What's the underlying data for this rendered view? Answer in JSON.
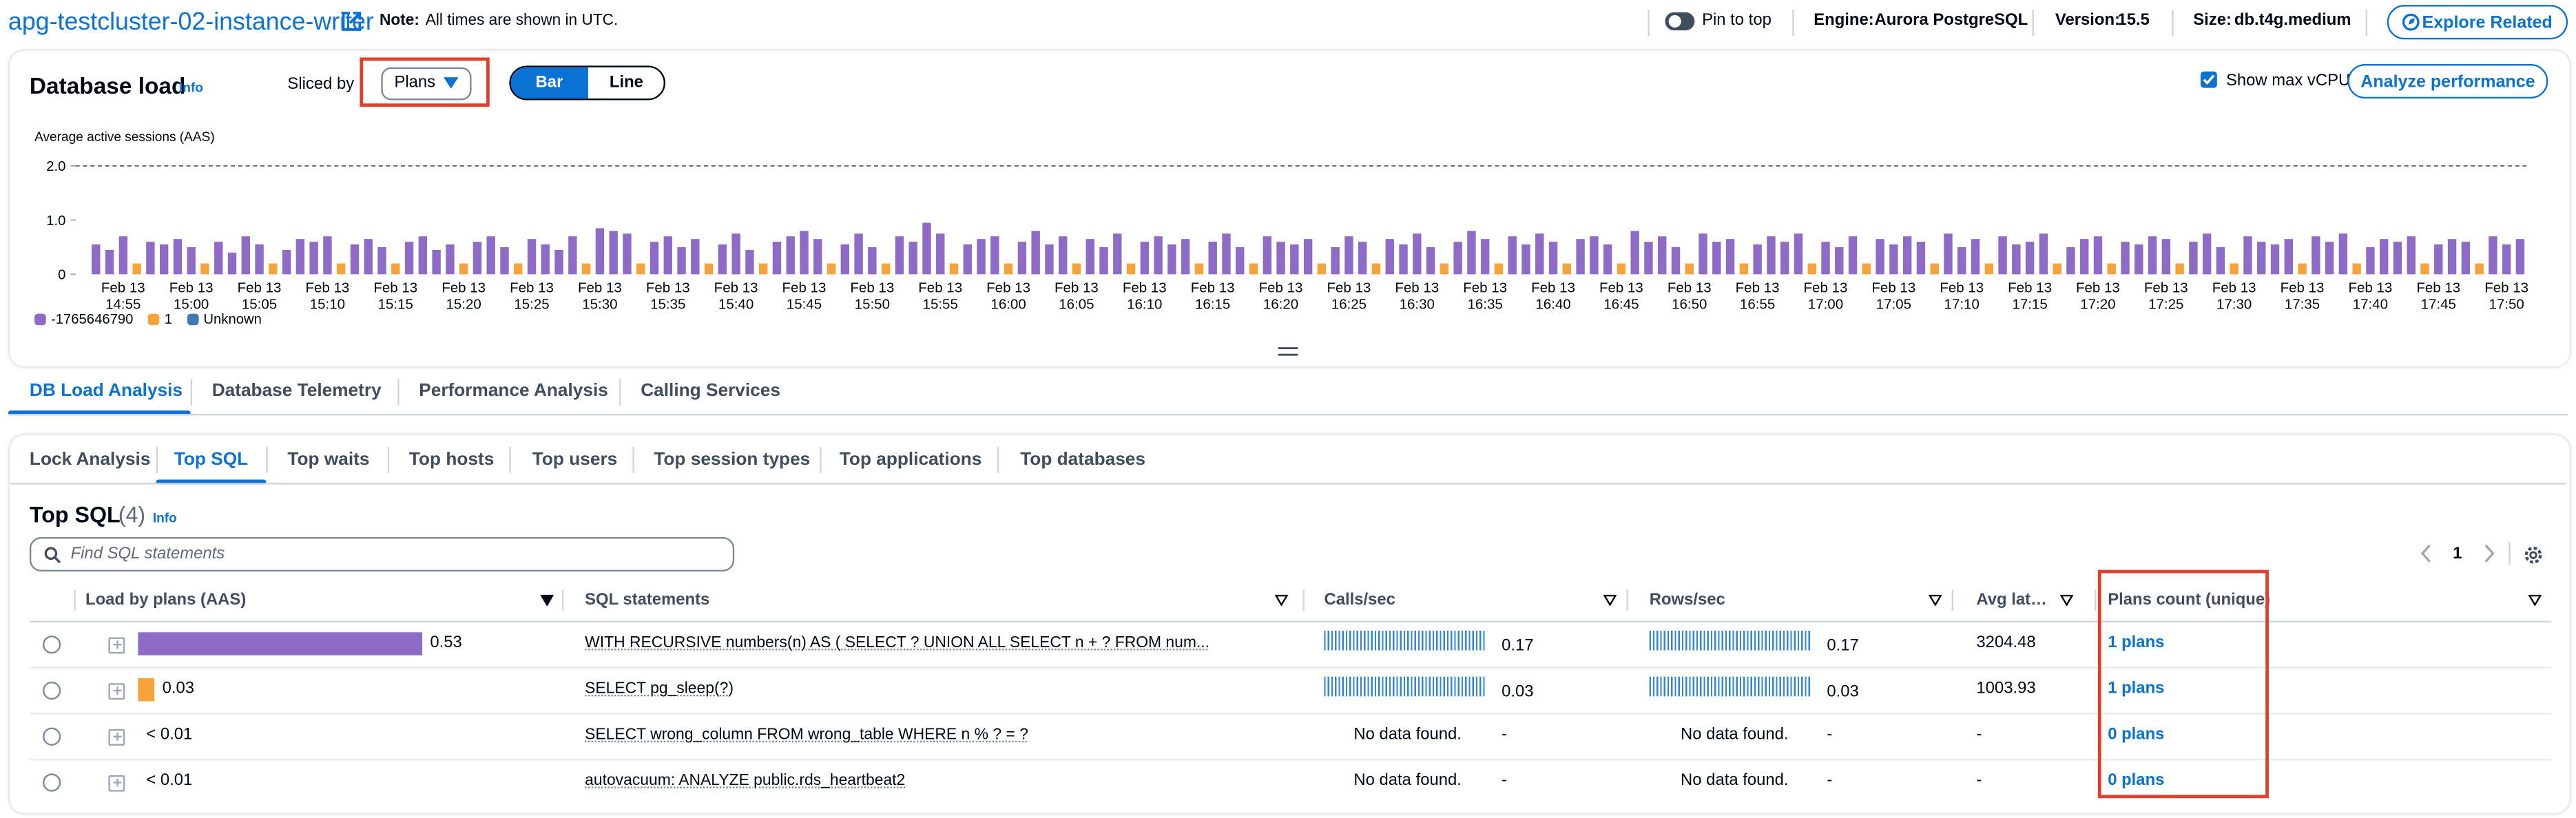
{
  "header": {
    "title": "apg-testcluster-02-instance-writer",
    "note_label": "Note:",
    "note": "All times are shown in UTC.",
    "pin": "Pin to top",
    "engine_label": "Engine:",
    "engine": "Aurora PostgreSQL",
    "version_label": "Version:",
    "version": "15.5",
    "size_label": "Size:",
    "size": "db.t4g.medium",
    "explore": "Explore Related"
  },
  "load_panel": {
    "title": "Database load",
    "info": "Info",
    "sliced_by_label": "Sliced by",
    "sliced_by": "Plans",
    "toggle": [
      "Bar",
      "Line"
    ],
    "show_max_vcpu": "Show max vCPU",
    "analyze": "Analyze performance"
  },
  "chart_data": {
    "type": "bar",
    "stacked": true,
    "y_label": "Average active sessions (AAS)",
    "ylim": [
      0,
      2
    ],
    "yticks": [
      0,
      {
        "value": 1,
        "label": "1.0"
      },
      {
        "value": 2,
        "label": "2.0"
      }
    ],
    "max_vcpu": 2,
    "categories": [
      null,
      null,
      "Feb 13 14:55",
      null,
      null,
      null,
      null,
      "Feb 13 15:00",
      null,
      null,
      null,
      null,
      "Feb 13 15:05",
      null,
      null,
      null,
      null,
      "Feb 13 15:10",
      null,
      null,
      null,
      null,
      "Feb 13 15:15",
      null,
      null,
      null,
      null,
      "Feb 13 15:20",
      null,
      null,
      null,
      null,
      "Feb 13 15:25",
      null,
      null,
      null,
      null,
      "Feb 13 15:30",
      null,
      null,
      null,
      null,
      "Feb 13 15:35",
      null,
      null,
      null,
      null,
      "Feb 13 15:40",
      null,
      null,
      null,
      null,
      "Feb 13 15:45",
      null,
      null,
      null,
      null,
      "Feb 13 15:50",
      null,
      null,
      null,
      null,
      "Feb 13 15:55",
      null,
      null,
      null,
      null,
      "Feb 13 16:00",
      null,
      null,
      null,
      null,
      "Feb 13 16:05",
      null,
      null,
      null,
      null,
      "Feb 13 16:10",
      null,
      null,
      null,
      null,
      "Feb 13 16:15",
      null,
      null,
      null,
      null,
      "Feb 13 16:20",
      null,
      null,
      null,
      null,
      "Feb 13 16:25",
      null,
      null,
      null,
      null,
      "Feb 13 16:30",
      null,
      null,
      null,
      null,
      "Feb 13 16:35",
      null,
      null,
      null,
      null,
      "Feb 13 16:40",
      null,
      null,
      null,
      null,
      "Feb 13 16:45",
      null,
      null,
      null,
      null,
      "Feb 13 16:50",
      null,
      null,
      null,
      null,
      "Feb 13 16:55",
      null,
      null,
      null,
      null,
      "Feb 13 17:00",
      null,
      null,
      null,
      null,
      "Feb 13 17:05",
      null,
      null,
      null,
      null,
      "Feb 13 17:10",
      null,
      null,
      null,
      null,
      "Feb 13 17:15",
      null,
      null,
      null,
      null,
      "Feb 13 17:20",
      null,
      null,
      null,
      null,
      "Feb 13 17:25",
      null,
      null,
      null,
      null,
      "Feb 13 17:30",
      null,
      null,
      null,
      null,
      "Feb 13 17:35",
      null,
      null,
      null,
      null,
      "Feb 13 17:40",
      null,
      null,
      null,
      null,
      "Feb 13 17:45",
      null,
      null,
      null,
      null,
      "Feb 13 17:50",
      null
    ],
    "series": [
      {
        "name": "-1765646790",
        "color": "#8d6bc7",
        "values": [
          0.55,
          0.45,
          0.7,
          0,
          0.6,
          0.55,
          0.65,
          0.5,
          0,
          0.6,
          0.4,
          0.7,
          0.55,
          0,
          0.45,
          0.65,
          0.6,
          0.7,
          0,
          0.55,
          0.65,
          0.5,
          0,
          0.6,
          0.7,
          0.45,
          0.55,
          0,
          0.6,
          0.7,
          0.5,
          0,
          0.65,
          0.55,
          0.45,
          0.7,
          0,
          0.85,
          0.8,
          0.75,
          0,
          0.6,
          0.7,
          0.5,
          0.65,
          0,
          0.55,
          0.75,
          0.45,
          0,
          0.6,
          0.7,
          0.8,
          0.65,
          0,
          0.55,
          0.75,
          0.5,
          0,
          0.7,
          0.6,
          0.95,
          0.75,
          0,
          0.55,
          0.65,
          0.7,
          0,
          0.6,
          0.8,
          0.55,
          0.7,
          0,
          0.65,
          0.5,
          0.75,
          0,
          0.6,
          0.7,
          0.55,
          0.65,
          0,
          0.6,
          0.75,
          0.5,
          0,
          0.7,
          0.6,
          0.55,
          0.65,
          0,
          0.5,
          0.7,
          0.6,
          0,
          0.65,
          0.55,
          0.75,
          0.5,
          0,
          0.6,
          0.8,
          0.65,
          0,
          0.7,
          0.55,
          0.75,
          0.6,
          0,
          0.65,
          0.7,
          0.55,
          0,
          0.8,
          0.6,
          0.7,
          0.5,
          0,
          0.75,
          0.6,
          0.65,
          0,
          0.55,
          0.7,
          0.6,
          0.75,
          0,
          0.6,
          0.5,
          0.7,
          0,
          0.65,
          0.55,
          0.7,
          0.6,
          0,
          0.75,
          0.5,
          0.65,
          0,
          0.7,
          0.55,
          0.6,
          0.75,
          0,
          0.5,
          0.65,
          0.7,
          0,
          0.6,
          0.55,
          0.7,
          0.65,
          0,
          0.6,
          0.75,
          0.5,
          0,
          0.7,
          0.6,
          0.55,
          0.65,
          0,
          0.7,
          0.6,
          0.75,
          0,
          0.5,
          0.65,
          0.6,
          0.7,
          0,
          0.55,
          0.65,
          0.6,
          0,
          0.7,
          0.55,
          0.65
        ]
      },
      {
        "name": "1",
        "color": "#f5a33a",
        "values": [
          0,
          0,
          0,
          0.2,
          0,
          0,
          0,
          0,
          0.2,
          0,
          0,
          0,
          0,
          0.2,
          0,
          0,
          0,
          0,
          0.2,
          0,
          0,
          0,
          0.2,
          0,
          0,
          0,
          0,
          0.2,
          0,
          0,
          0,
          0.2,
          0,
          0,
          0,
          0,
          0.2,
          0,
          0,
          0,
          0.2,
          0,
          0,
          0,
          0,
          0.2,
          0,
          0,
          0,
          0.2,
          0,
          0,
          0,
          0,
          0.2,
          0,
          0,
          0,
          0.2,
          0,
          0,
          0,
          0,
          0.2,
          0,
          0,
          0,
          0.2,
          0,
          0,
          0,
          0,
          0.2,
          0,
          0,
          0,
          0.2,
          0,
          0,
          0,
          0,
          0.2,
          0,
          0,
          0,
          0.2,
          0,
          0,
          0,
          0,
          0.2,
          0,
          0,
          0,
          0.2,
          0,
          0,
          0,
          0,
          0.2,
          0,
          0,
          0,
          0.2,
          0,
          0,
          0,
          0,
          0.2,
          0,
          0,
          0,
          0.2,
          0,
          0,
          0,
          0,
          0.2,
          0,
          0,
          0,
          0.2,
          0,
          0,
          0,
          0,
          0.2,
          0,
          0,
          0,
          0.2,
          0,
          0,
          0,
          0,
          0.2,
          0,
          0,
          0,
          0.2,
          0,
          0,
          0,
          0,
          0.2,
          0,
          0,
          0,
          0.2,
          0,
          0,
          0,
          0,
          0.2,
          0,
          0,
          0,
          0.2,
          0,
          0,
          0,
          0,
          0.2,
          0,
          0,
          0,
          0.2,
          0,
          0,
          0,
          0,
          0.2,
          0,
          0,
          0,
          0.2,
          0,
          0,
          0
        ]
      },
      {
        "name": "Unknown",
        "color": "#3f7ab8",
        "values": [
          0,
          0,
          0,
          0,
          0,
          0,
          0,
          0,
          0,
          0,
          0,
          0,
          0,
          0,
          0,
          0,
          0,
          0,
          0,
          0,
          0,
          0,
          0,
          0,
          0,
          0,
          0,
          0,
          0,
          0,
          0,
          0,
          0,
          0,
          0,
          0,
          0,
          0,
          0,
          0,
          0,
          0,
          0,
          0,
          0,
          0,
          0,
          0,
          0,
          0,
          0,
          0,
          0,
          0,
          0,
          0,
          0,
          0,
          0,
          0,
          0,
          0,
          0,
          0,
          0,
          0,
          0,
          0,
          0,
          0,
          0,
          0,
          0,
          0,
          0,
          0,
          0,
          0,
          0,
          0,
          0,
          0,
          0,
          0,
          0,
          0,
          0,
          0,
          0,
          0,
          0,
          0,
          0,
          0,
          0,
          0,
          0,
          0,
          0,
          0,
          0,
          0,
          0,
          0,
          0,
          0,
          0,
          0,
          0,
          0,
          0,
          0,
          0,
          0,
          0,
          0,
          0,
          0,
          0,
          0,
          0,
          0,
          0,
          0,
          0,
          0,
          0,
          0,
          0,
          0,
          0,
          0,
          0,
          0,
          0,
          0,
          0,
          0,
          0,
          0,
          0,
          0,
          0,
          0,
          0,
          0,
          0,
          0,
          0,
          0,
          0,
          0,
          0,
          0,
          0,
          0,
          0,
          0,
          0,
          0,
          0,
          0,
          0,
          0,
          0,
          0,
          0,
          0,
          0,
          0,
          0,
          0,
          0,
          0,
          0,
          0,
          0,
          0,
          0
        ]
      }
    ]
  },
  "tabs": [
    "DB Load Analysis",
    "Database Telemetry",
    "Performance Analysis",
    "Calling Services"
  ],
  "subtabs": [
    "Lock Analysis",
    "Top SQL",
    "Top waits",
    "Top hosts",
    "Top users",
    "Top session types",
    "Top applications",
    "Top databases"
  ],
  "top_sql": {
    "title": "Top SQL",
    "count": "(4)",
    "info": "Info",
    "search_placeholder": "Find SQL statements",
    "page": "1",
    "columns": [
      "Load by plans (AAS)",
      "SQL statements",
      "Calls/sec",
      "Rows/sec",
      "Avg lat…",
      "Plans count (unique)"
    ],
    "rows": [
      {
        "load": 0.53,
        "color": "#8d6bc7",
        "statement": "WITH RECURSIVE numbers(n) AS ( SELECT ? UNION ALL SELECT n + ? FROM num...",
        "calls": "0.17",
        "rows": "0.17",
        "latency": "3204.48",
        "plans": "1 plans"
      },
      {
        "load": 0.03,
        "color": "#f5a33a",
        "statement": "SELECT pg_sleep(?)",
        "calls": "0.03",
        "rows": "0.03",
        "latency": "1003.93",
        "plans": "1 plans"
      },
      {
        "load": "< 0.01",
        "statement": "SELECT wrong_column FROM wrong_table WHERE n % ? = ?",
        "calls_note": "No data found.",
        "calls": "-",
        "rows_note": "No data found.",
        "rows": "-",
        "latency": "-",
        "plans": "0 plans"
      },
      {
        "load": "< 0.01",
        "statement": "autovacuum: ANALYZE public.rds_heartbeat2",
        "calls_note": "No data found.",
        "calls": "-",
        "rows_note": "No data found.",
        "rows": "-",
        "latency": "-",
        "plans": "0 plans"
      }
    ]
  }
}
